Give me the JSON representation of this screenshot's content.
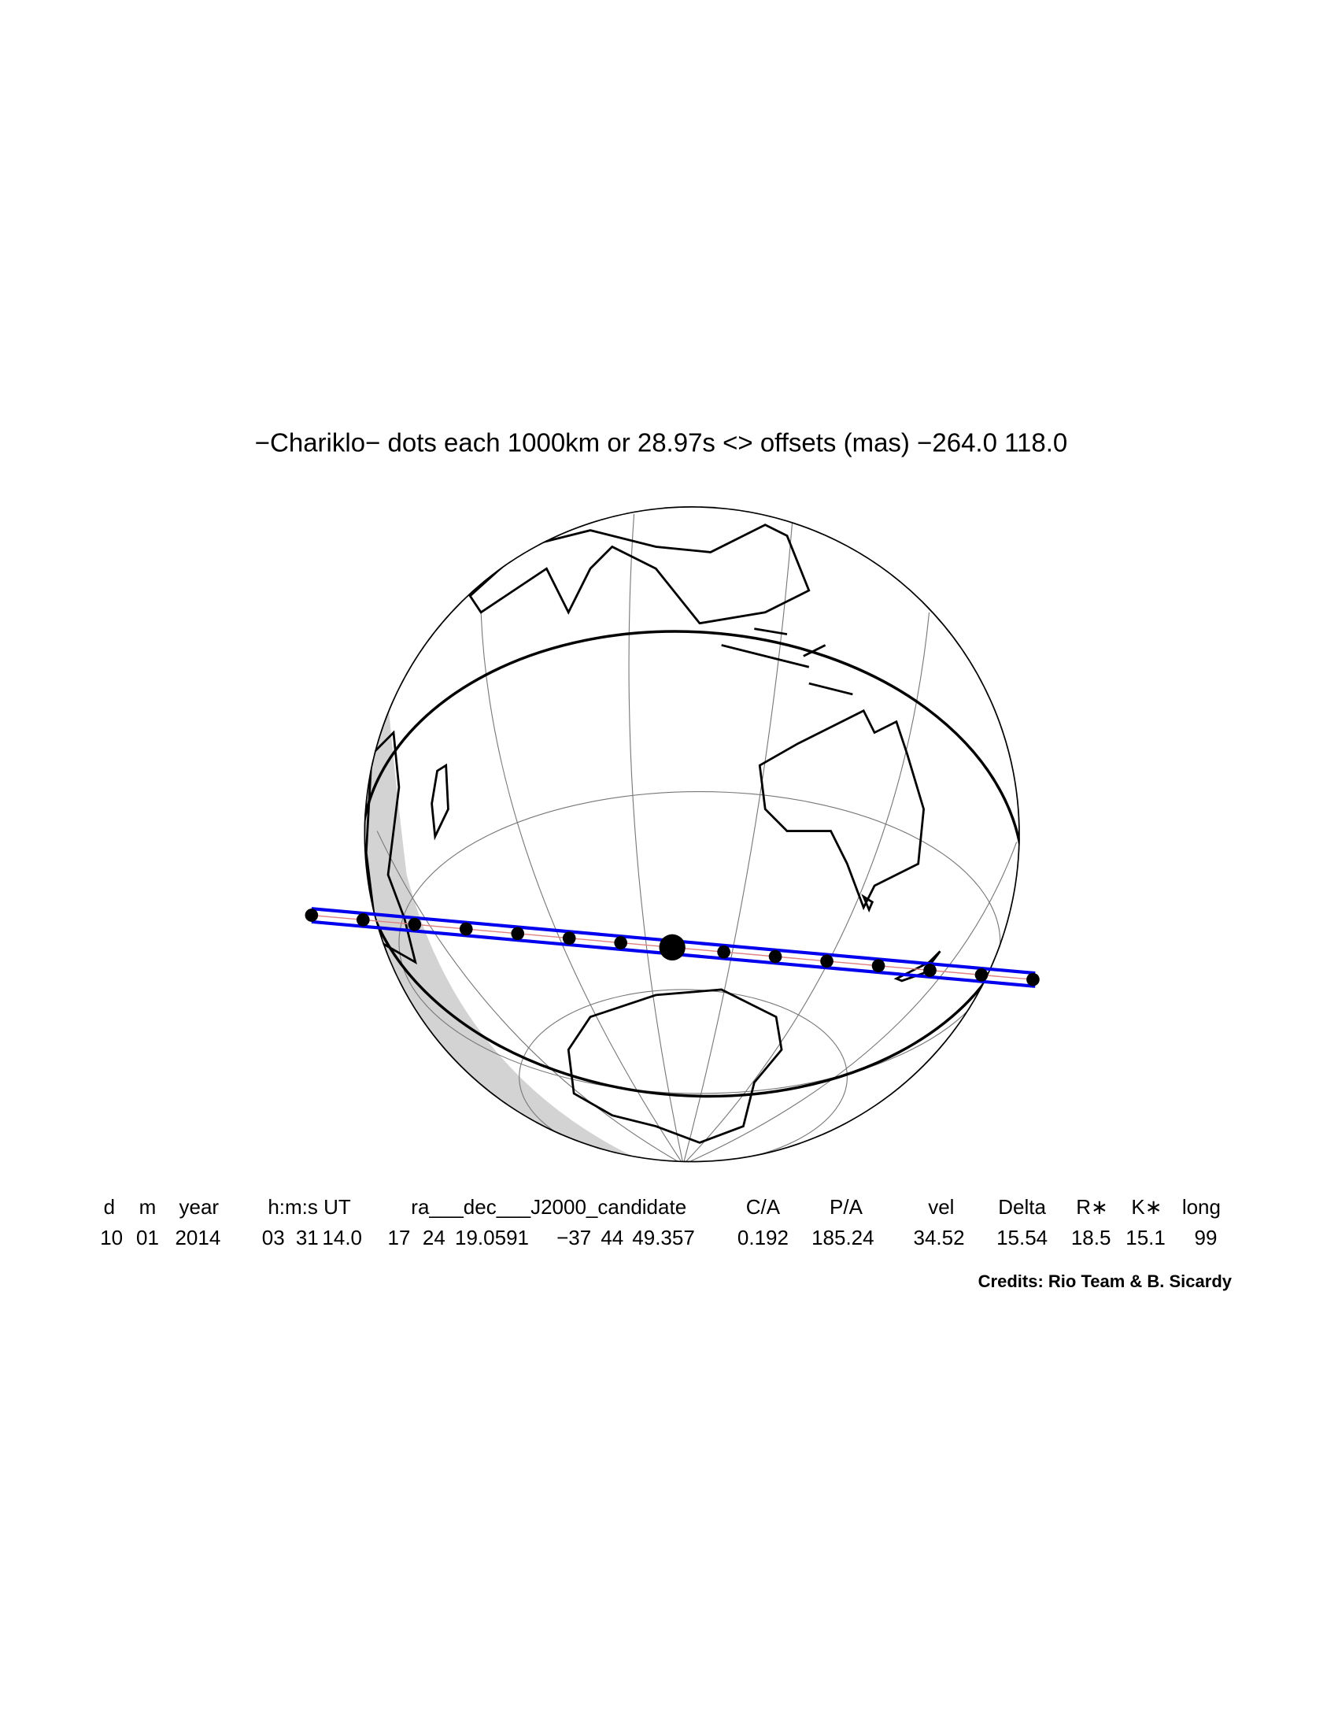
{
  "title": "−Chariklo− dots each 1000km or 28.97s <> offsets (mas) −264.0  118.0",
  "table": {
    "headers": [
      "d",
      "m",
      "year",
      "h:m:s UT",
      "ra___dec___J2000_candidate",
      "C/A",
      "P/A",
      "vel",
      "Delta",
      "R∗",
      "K∗",
      "long"
    ],
    "values": [
      "10",
      "01",
      "2014",
      "03",
      "31",
      "14.0",
      "17",
      "24",
      "19.0591",
      "−37",
      "44",
      "49.357",
      "0.192",
      "185.24",
      "34.52",
      "15.54",
      "18.5",
      "15.1",
      "99"
    ]
  },
  "credits": "Credits: Rio Team & B. Sicardy"
}
